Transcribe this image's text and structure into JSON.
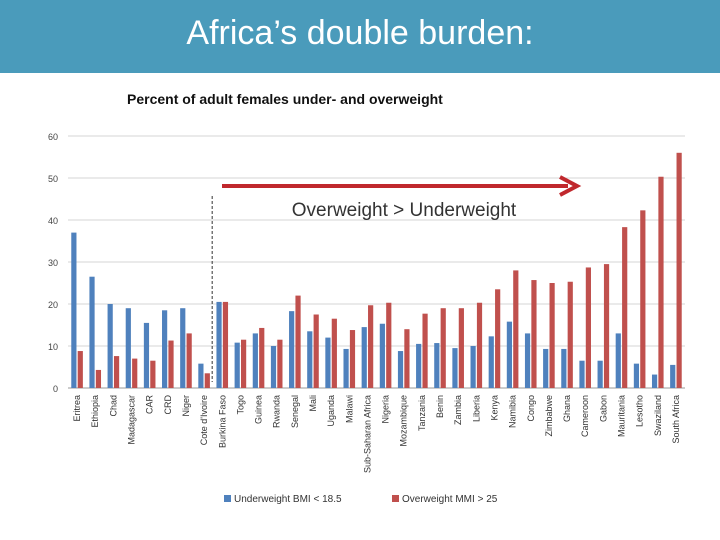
{
  "slide": {
    "title": "Africa’s double burden:"
  },
  "chart_data": {
    "type": "bar",
    "title": "Percent of adult females under- and overweight",
    "annotation": "Overweight > Underweight",
    "categories": [
      "Eritrea",
      "Ethiopia",
      "Chad",
      "Madagascar",
      "CAR",
      "CRD",
      "Niger",
      "Cote d'Ivoire",
      "Burkina Faso",
      "Togo",
      "Guinea",
      "Rwanda",
      "Senegal",
      "Mali",
      "Uganda",
      "Malawi",
      "Sub-Saharan Africa",
      "Nigeria",
      "Mozambique",
      "Tanzania",
      "Benin",
      "Zambia",
      "Liberia",
      "Kenya",
      "Namibia",
      "Congo",
      "Zimbabwe",
      "Ghana",
      "Cameroon",
      "Gabon",
      "Mauritania",
      "Lesotho",
      "Swaziland",
      "South Africa"
    ],
    "series": [
      {
        "name": "Underweight BMI < 18.5",
        "color": "#4f81bd",
        "values": [
          37,
          26.5,
          20,
          19,
          15.5,
          18.5,
          19,
          5.8,
          20.5,
          10.8,
          13,
          10,
          18.3,
          13.5,
          12,
          9.3,
          14.5,
          15.3,
          8.8,
          10.5,
          10.7,
          9.5,
          10,
          12.3,
          15.8,
          13,
          9.3,
          9.3,
          6.5,
          6.5,
          13,
          5.8,
          3.2,
          5.5
        ]
      },
      {
        "name": "Overweight MMI > 25",
        "color": "#c0504d",
        "values": [
          8.8,
          4.3,
          7.6,
          7,
          6.5,
          11.3,
          13,
          3.5,
          20.5,
          11.5,
          14.3,
          11.5,
          22,
          17.5,
          16.5,
          13.8,
          19.7,
          20.3,
          14,
          17.7,
          19,
          19,
          20.3,
          23.5,
          28,
          25.7,
          25,
          25.3,
          28.7,
          29.5,
          38.3,
          42.3,
          50.3,
          56
        ]
      }
    ],
    "y_ticks": [
      "0",
      "10",
      "20",
      "30",
      "40",
      "50",
      "60"
    ],
    "ylim": [
      0,
      60
    ],
    "grid": true,
    "legend_position": "bottom",
    "colors": {
      "title_bar": "#4a9bbb",
      "arrow": "#c0282d"
    }
  }
}
